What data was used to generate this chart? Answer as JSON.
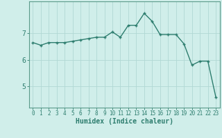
{
  "x": [
    0,
    1,
    2,
    3,
    4,
    5,
    6,
    7,
    8,
    9,
    10,
    11,
    12,
    13,
    14,
    15,
    16,
    17,
    18,
    19,
    20,
    21,
    22,
    23
  ],
  "y": [
    6.65,
    6.55,
    6.65,
    6.65,
    6.65,
    6.7,
    6.75,
    6.8,
    6.85,
    6.85,
    7.05,
    6.85,
    7.3,
    7.3,
    7.75,
    7.45,
    6.95,
    6.95,
    6.95,
    6.6,
    5.8,
    5.95,
    5.95,
    4.6
  ],
  "line_color": "#2d7d6e",
  "marker": "+",
  "marker_size": 3,
  "line_width": 1.0,
  "bg_color": "#d0eeea",
  "grid_color": "#b0d8d4",
  "xlabel": "Humidex (Indice chaleur)",
  "xlabel_fontsize": 7,
  "ytick_labels": [
    "5",
    "6",
    "7"
  ],
  "ytick_values": [
    5,
    6,
    7
  ],
  "xtick_labels": [
    "0",
    "1",
    "2",
    "3",
    "4",
    "5",
    "6",
    "7",
    "8",
    "9",
    "10",
    "11",
    "12",
    "13",
    "14",
    "15",
    "16",
    "17",
    "18",
    "19",
    "20",
    "21",
    "22",
    "23"
  ],
  "ylim": [
    4.2,
    8.2
  ],
  "xlim": [
    -0.5,
    23.5
  ],
  "tick_color": "#2d7d6e",
  "tick_fontsize": 5.5,
  "ytick_fontsize": 7.0,
  "axis_color": "#2d7d6e",
  "spine_color": "#5a9a8a"
}
